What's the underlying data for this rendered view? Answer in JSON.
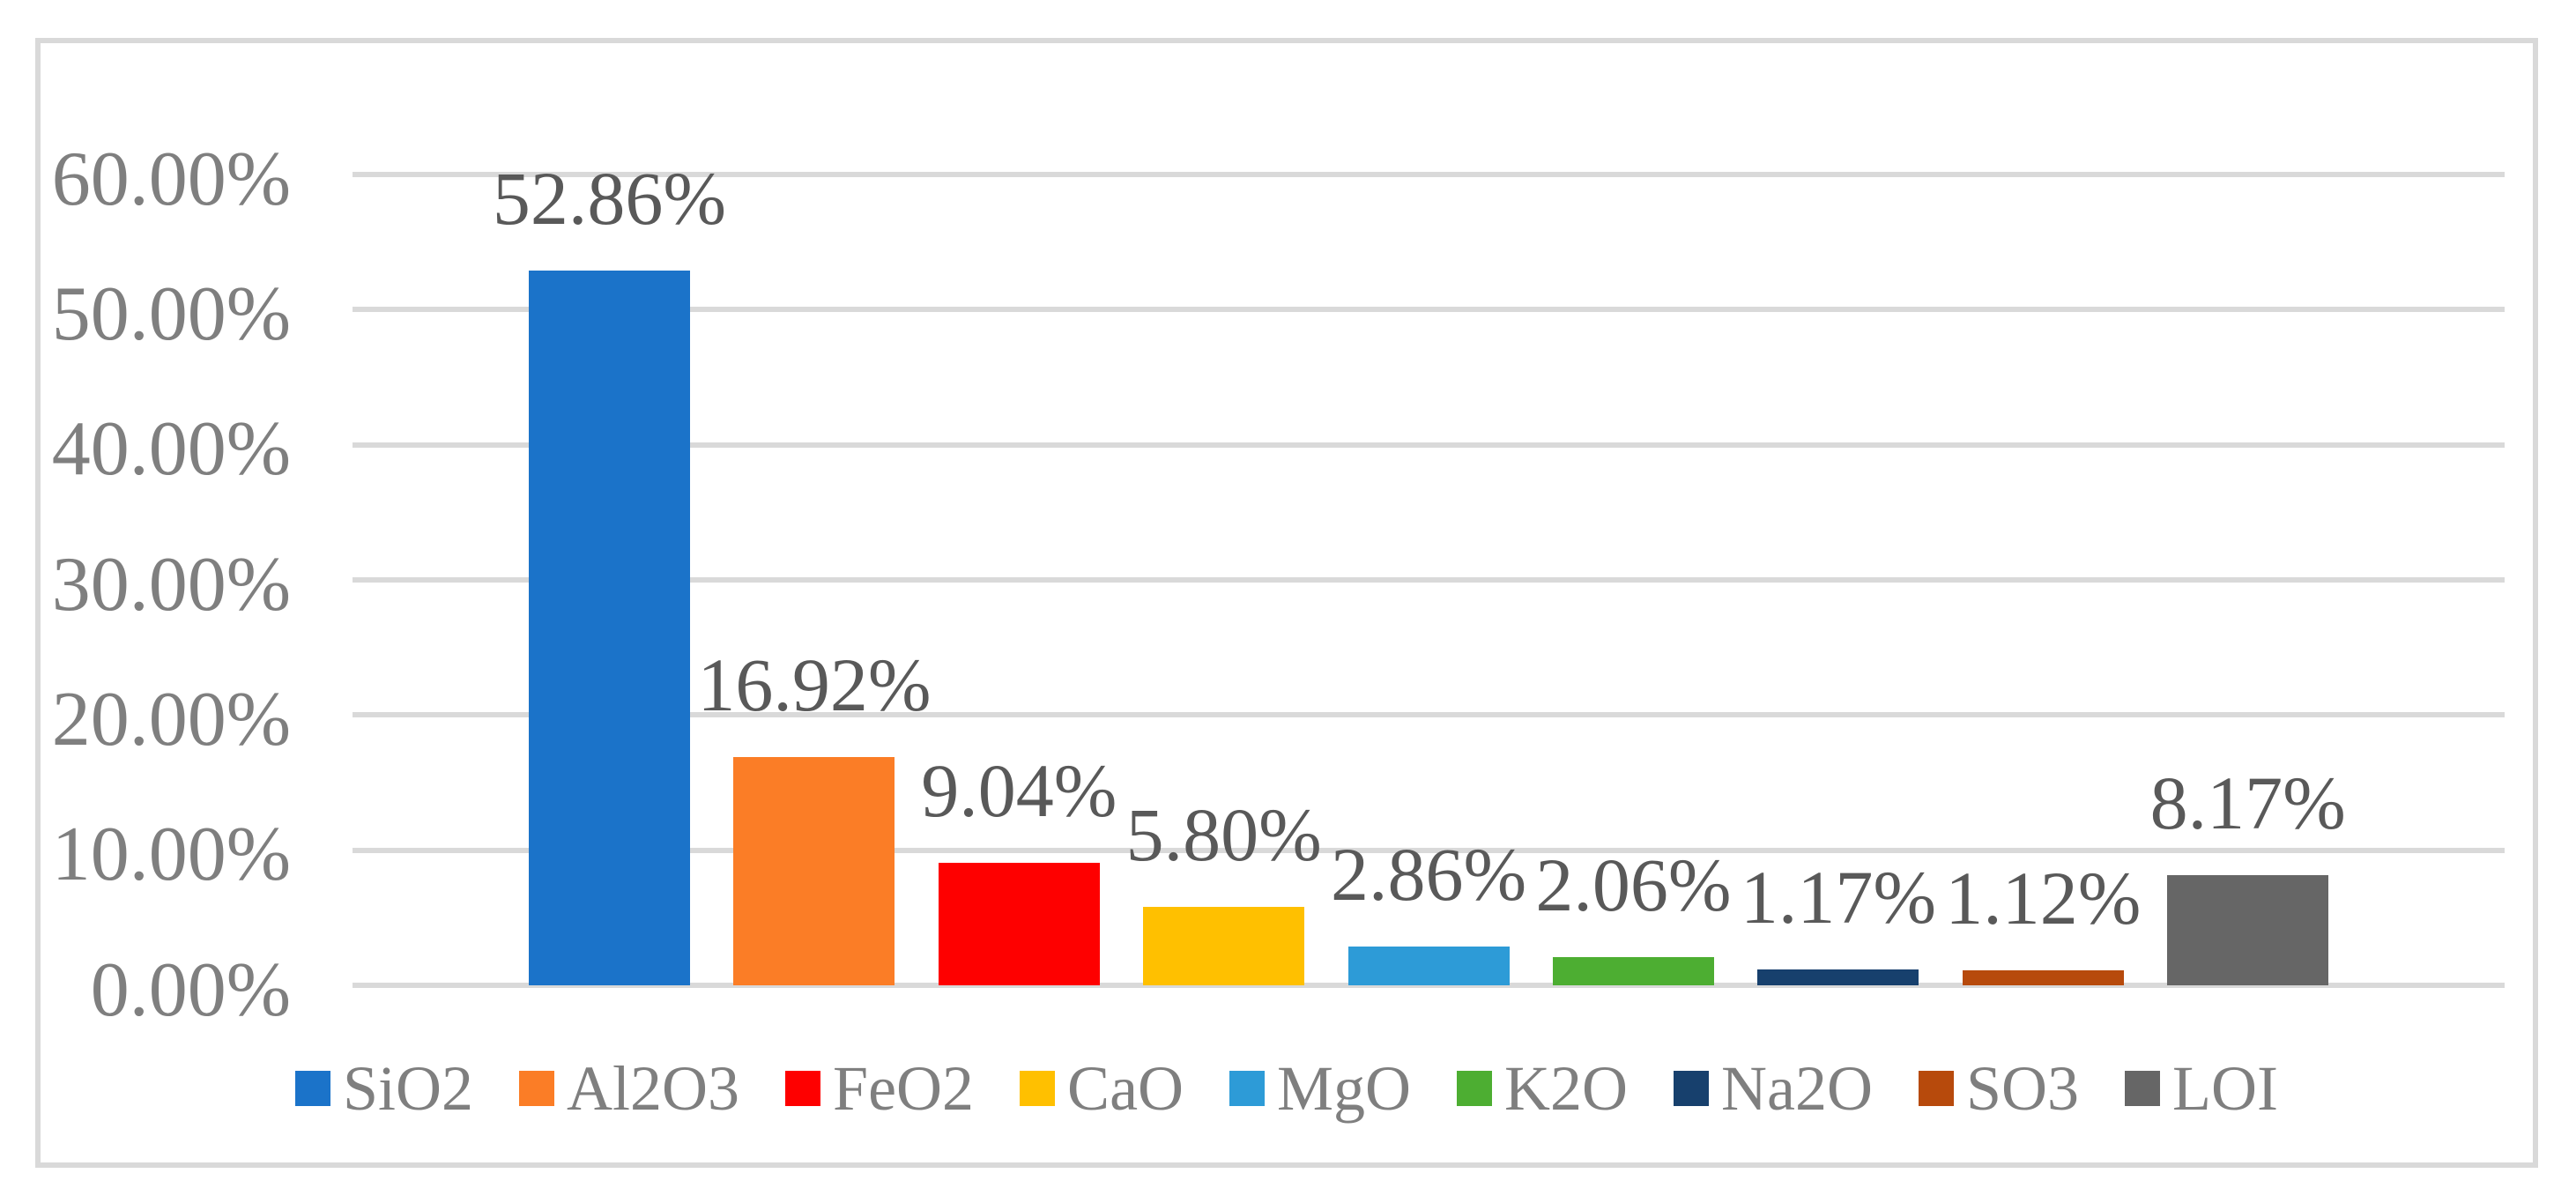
{
  "chart_data": {
    "type": "bar",
    "categories": [
      "SiO2",
      "Al2O3",
      "FeO2",
      "CaO",
      "MgO",
      "K2O",
      "Na2O",
      "SO3",
      "LOI"
    ],
    "values": [
      52.86,
      16.92,
      9.04,
      5.8,
      2.86,
      2.06,
      1.17,
      1.12,
      8.17
    ],
    "data_labels": [
      "52.86%",
      "16.92%",
      "9.04%",
      "5.80%",
      "2.86%",
      "2.06%",
      "1.17%",
      "1.12%",
      "8.17%"
    ],
    "bar_colors": [
      "#1b73c9",
      "#fb7d26",
      "#fe0000",
      "#ffc000",
      "#2d9bd7",
      "#4dae32",
      "#17406d",
      "#b74a0c",
      "#666666"
    ],
    "title": "",
    "xlabel": "",
    "ylabel": "",
    "ylim": [
      0,
      60
    ],
    "ytick_step": 10,
    "ytick_labels": [
      "0.00%",
      "10.00%",
      "20.00%",
      "30.00%",
      "40.00%",
      "50.00%",
      "60.00%"
    ],
    "grid": true,
    "legend_position": "bottom",
    "legend_entries": [
      "SiO2",
      "Al2O3",
      "FeO2",
      "CaO",
      "MgO",
      "K2O",
      "Na2O",
      "SO3",
      "LOI"
    ]
  },
  "styles": {
    "background": "#ffffff",
    "frame_border_color": "#d9d9d9",
    "gridline_color": "#d9d9d9",
    "axis_label_color": "#7f7f7f",
    "data_label_color": "#595959",
    "legend_text_color": "#7f7f7f"
  }
}
